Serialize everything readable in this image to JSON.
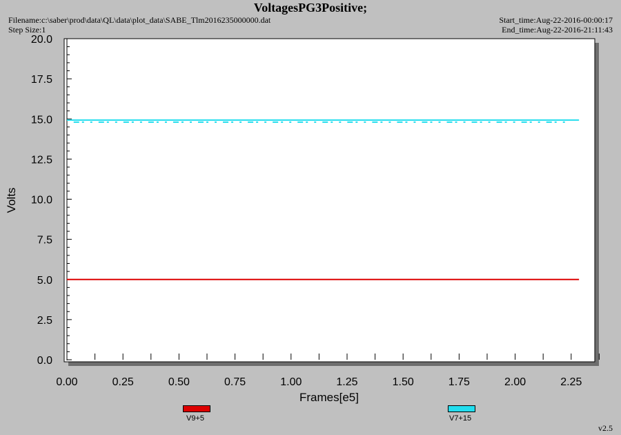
{
  "header": {
    "title": "VoltagesPG3Positive;",
    "filename": "Filename:c:\\saber\\prod\\data\\QL\\data\\plot_data\\SABE_Tlm2016235000000.dat",
    "step_size": "Step Size:1",
    "start_time": "Start_time:Aug-22-2016-00:00:17",
    "end_time": "End_time:Aug-22-2016-21:11:43"
  },
  "version": "v2.5",
  "colors": {
    "background": "#c0c0c0",
    "plot_area": "#ffffff",
    "series_v9": "#dd0000",
    "series_v7": "#22ddee"
  },
  "chart_data": {
    "type": "line",
    "title": "VoltagesPG3Positive;",
    "xlabel": "Frames[e5]",
    "ylabel": "Volts",
    "xlim": [
      0.0,
      2.38
    ],
    "ylim": [
      0.0,
      20.0
    ],
    "x_ticks": [
      "0.00",
      "0.25",
      "0.50",
      "0.75",
      "1.00",
      "1.25",
      "1.50",
      "1.75",
      "2.00",
      "2.25"
    ],
    "y_ticks": [
      "0.0",
      "2.5",
      "5.0",
      "7.5",
      "10.0",
      "12.5",
      "15.0",
      "17.5",
      "20.0"
    ],
    "grid": false,
    "legend_position": "bottom",
    "series": [
      {
        "name": "V9+5",
        "x": [
          0.0,
          2.285
        ],
        "values": [
          5.0,
          5.0
        ]
      },
      {
        "name": "V7+15",
        "x": [
          0.0,
          2.285
        ],
        "values": [
          14.93,
          14.93
        ]
      }
    ]
  }
}
